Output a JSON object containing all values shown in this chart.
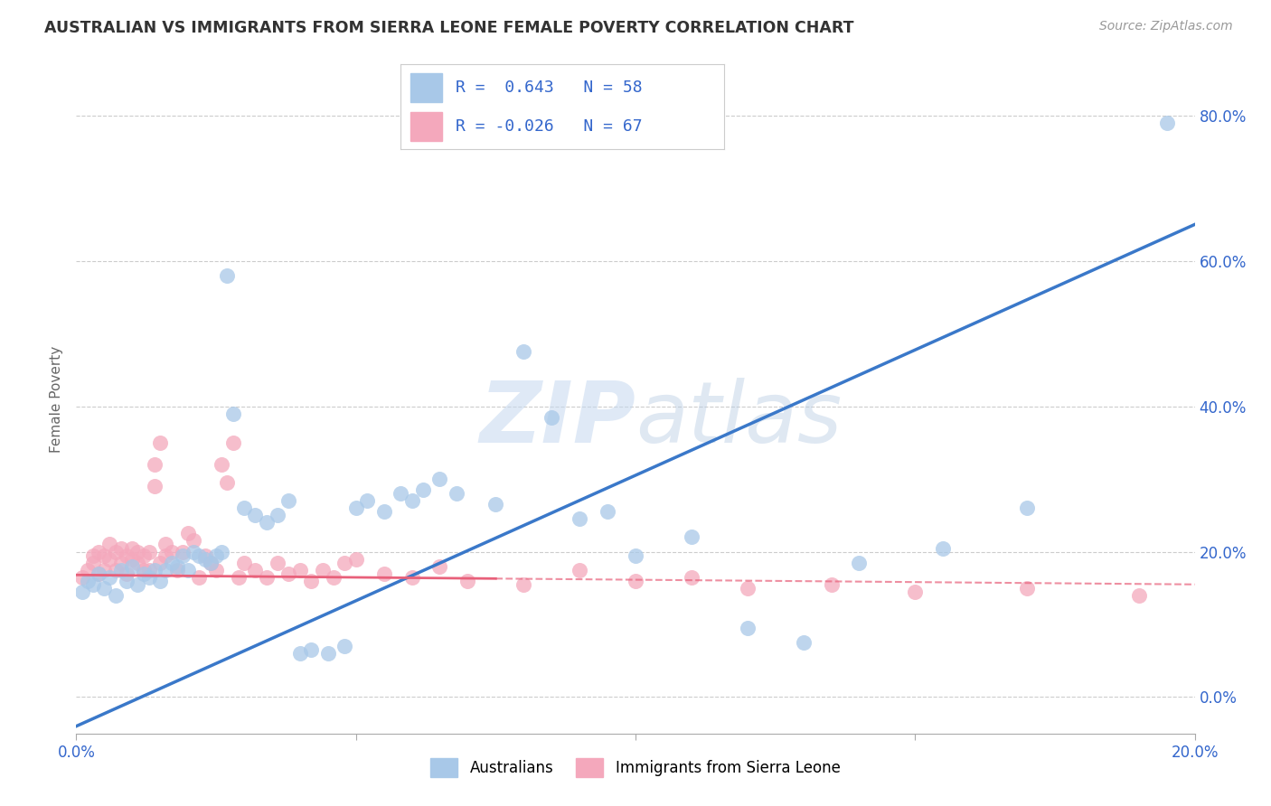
{
  "title": "AUSTRALIAN VS IMMIGRANTS FROM SIERRA LEONE FEMALE POVERTY CORRELATION CHART",
  "source": "Source: ZipAtlas.com",
  "ylabel_left": "Female Poverty",
  "x_min": 0.0,
  "x_max": 0.2,
  "y_min": -0.05,
  "y_max": 0.87,
  "x_ticks": [
    0.0,
    0.05,
    0.1,
    0.15,
    0.2
  ],
  "x_tick_labels": [
    "0.0%",
    "",
    "",
    "",
    "20.0%"
  ],
  "y_ticks_right": [
    0.0,
    0.2,
    0.4,
    0.6,
    0.8
  ],
  "y_tick_labels_right": [
    "0.0%",
    "20.0%",
    "40.0%",
    "60.0%",
    "80.0%"
  ],
  "watermark": "ZIPatlas",
  "blue_color": "#a8c8e8",
  "pink_color": "#f4a8bc",
  "blue_line_color": "#3a78c9",
  "pink_line_color": "#e8607a",
  "legend_blue_label": "Australians",
  "legend_pink_label": "Immigrants from Sierra Leone",
  "blue_R": "0.643",
  "blue_N": "58",
  "pink_R": "-0.026",
  "pink_N": "67",
  "blue_points_x": [
    0.001,
    0.002,
    0.003,
    0.004,
    0.005,
    0.006,
    0.007,
    0.008,
    0.009,
    0.01,
    0.011,
    0.012,
    0.013,
    0.014,
    0.015,
    0.016,
    0.017,
    0.018,
    0.019,
    0.02,
    0.021,
    0.022,
    0.023,
    0.024,
    0.025,
    0.026,
    0.027,
    0.028,
    0.03,
    0.032,
    0.034,
    0.036,
    0.038,
    0.04,
    0.042,
    0.045,
    0.048,
    0.05,
    0.052,
    0.055,
    0.058,
    0.06,
    0.062,
    0.065,
    0.068,
    0.075,
    0.08,
    0.085,
    0.09,
    0.095,
    0.1,
    0.11,
    0.12,
    0.13,
    0.14,
    0.155,
    0.17,
    0.195
  ],
  "blue_points_y": [
    0.145,
    0.16,
    0.155,
    0.17,
    0.15,
    0.165,
    0.14,
    0.175,
    0.16,
    0.18,
    0.155,
    0.17,
    0.165,
    0.175,
    0.16,
    0.175,
    0.185,
    0.18,
    0.195,
    0.175,
    0.2,
    0.195,
    0.19,
    0.185,
    0.195,
    0.2,
    0.58,
    0.39,
    0.26,
    0.25,
    0.24,
    0.25,
    0.27,
    0.06,
    0.065,
    0.06,
    0.07,
    0.26,
    0.27,
    0.255,
    0.28,
    0.27,
    0.285,
    0.3,
    0.28,
    0.265,
    0.475,
    0.385,
    0.245,
    0.255,
    0.195,
    0.22,
    0.095,
    0.075,
    0.185,
    0.205,
    0.26,
    0.79
  ],
  "pink_points_x": [
    0.001,
    0.002,
    0.003,
    0.003,
    0.004,
    0.004,
    0.005,
    0.005,
    0.006,
    0.006,
    0.007,
    0.007,
    0.008,
    0.008,
    0.009,
    0.009,
    0.01,
    0.01,
    0.011,
    0.011,
    0.012,
    0.012,
    0.013,
    0.013,
    0.014,
    0.014,
    0.015,
    0.015,
    0.016,
    0.016,
    0.017,
    0.018,
    0.019,
    0.02,
    0.021,
    0.022,
    0.023,
    0.024,
    0.025,
    0.026,
    0.027,
    0.028,
    0.029,
    0.03,
    0.032,
    0.034,
    0.036,
    0.038,
    0.04,
    0.042,
    0.044,
    0.046,
    0.048,
    0.05,
    0.055,
    0.06,
    0.065,
    0.07,
    0.08,
    0.09,
    0.1,
    0.11,
    0.12,
    0.135,
    0.15,
    0.17,
    0.19
  ],
  "pink_points_y": [
    0.165,
    0.175,
    0.185,
    0.195,
    0.17,
    0.2,
    0.175,
    0.195,
    0.19,
    0.21,
    0.175,
    0.2,
    0.185,
    0.205,
    0.17,
    0.195,
    0.19,
    0.205,
    0.185,
    0.2,
    0.175,
    0.195,
    0.175,
    0.2,
    0.32,
    0.29,
    0.35,
    0.185,
    0.195,
    0.21,
    0.2,
    0.175,
    0.2,
    0.225,
    0.215,
    0.165,
    0.195,
    0.185,
    0.175,
    0.32,
    0.295,
    0.35,
    0.165,
    0.185,
    0.175,
    0.165,
    0.185,
    0.17,
    0.175,
    0.16,
    0.175,
    0.165,
    0.185,
    0.19,
    0.17,
    0.165,
    0.18,
    0.16,
    0.155,
    0.175,
    0.16,
    0.165,
    0.15,
    0.155,
    0.145,
    0.15,
    0.14
  ],
  "blue_line_x0": 0.0,
  "blue_line_y0": -0.04,
  "blue_line_x1": 0.2,
  "blue_line_y1": 0.65,
  "pink_line_solid_x0": 0.0,
  "pink_line_solid_y0": 0.168,
  "pink_line_solid_x1": 0.075,
  "pink_line_solid_y1": 0.163,
  "pink_line_dash_x0": 0.075,
  "pink_line_dash_y0": 0.163,
  "pink_line_dash_x1": 0.2,
  "pink_line_dash_y1": 0.155
}
